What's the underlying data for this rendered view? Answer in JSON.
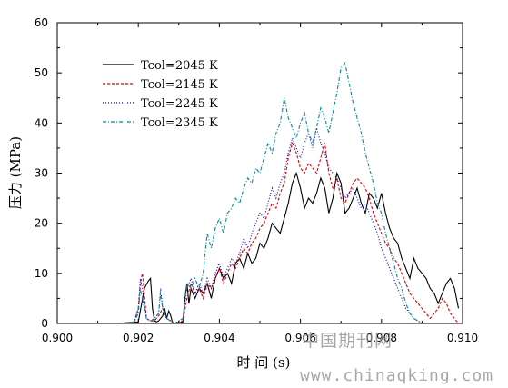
{
  "chart_data": {
    "type": "line",
    "title": "",
    "xlabel": "时 间 (s)",
    "ylabel": "压力 (MPa)",
    "xlim": [
      0.9,
      0.91
    ],
    "ylim": [
      0,
      60
    ],
    "xticks": [
      "0.900",
      "0.902",
      "0.904",
      "0.906",
      "0.908",
      "0.910"
    ],
    "yticks": [
      "0",
      "10",
      "20",
      "30",
      "40",
      "50",
      "60"
    ],
    "grid": false,
    "legend_position": "top-left",
    "series": [
      {
        "name": "Tcol=2045 K",
        "color": "#000000",
        "dash": "solid",
        "x": [
          0.9,
          0.9015,
          0.902,
          0.90215,
          0.90225,
          0.9023,
          0.90235,
          0.9024,
          0.90245,
          0.9025,
          0.9026,
          0.90265,
          0.9027,
          0.90275,
          0.9028,
          0.90285,
          0.9029,
          0.9031,
          0.90315,
          0.9032,
          0.90325,
          0.9033,
          0.9034,
          0.9035,
          0.9036,
          0.9037,
          0.9038,
          0.9039,
          0.904,
          0.9041,
          0.9042,
          0.9043,
          0.9044,
          0.9045,
          0.9046,
          0.9047,
          0.9048,
          0.9049,
          0.905,
          0.9051,
          0.9052,
          0.9053,
          0.9054,
          0.9055,
          0.9056,
          0.9057,
          0.9058,
          0.9059,
          0.906,
          0.9061,
          0.9062,
          0.9063,
          0.9064,
          0.9065,
          0.9066,
          0.9067,
          0.9068,
          0.9069,
          0.907,
          0.9071,
          0.9072,
          0.9073,
          0.9074,
          0.9075,
          0.9076,
          0.9077,
          0.9078,
          0.9079,
          0.908,
          0.9081,
          0.9082,
          0.9083,
          0.9084,
          0.9085,
          0.9086,
          0.9087,
          0.9088,
          0.9089,
          0.909,
          0.9091,
          0.9092,
          0.9093,
          0.9094,
          0.9095,
          0.9096,
          0.9097,
          0.9098,
          0.9099
        ],
        "y": [
          0,
          0,
          0.3,
          7,
          8.5,
          9,
          3,
          0.5,
          0.3,
          0.5,
          1.5,
          3,
          1,
          2.5,
          1.5,
          0,
          0,
          0.3,
          5,
          8,
          4,
          7,
          5,
          7,
          6,
          8,
          5,
          9,
          11,
          9,
          10,
          8,
          12,
          13,
          11,
          14,
          12,
          13,
          16,
          15,
          17,
          20,
          19,
          18,
          21,
          24,
          28,
          30,
          27,
          23,
          25,
          24,
          26,
          29,
          27,
          22,
          25,
          30,
          28,
          22,
          23,
          25,
          27,
          24,
          22,
          26,
          25,
          23,
          26,
          22,
          19,
          17,
          16,
          13,
          11,
          9,
          13,
          11,
          10,
          9,
          7,
          6,
          4,
          6,
          8,
          9,
          7,
          3
        ]
      },
      {
        "name": "Tcol=2145 K",
        "color": "#dd0000",
        "dash": "3,2",
        "x": [
          0.9,
          0.9015,
          0.9019,
          0.902,
          0.90205,
          0.9021,
          0.90215,
          0.9022,
          0.9023,
          0.9024,
          0.9025,
          0.9026,
          0.9027,
          0.9028,
          0.9029,
          0.9031,
          0.9032,
          0.9033,
          0.9034,
          0.9035,
          0.9036,
          0.9037,
          0.9038,
          0.9039,
          0.904,
          0.9041,
          0.9042,
          0.9043,
          0.9044,
          0.9045,
          0.9046,
          0.9047,
          0.9048,
          0.9049,
          0.905,
          0.9051,
          0.9052,
          0.9053,
          0.9054,
          0.9055,
          0.9056,
          0.9057,
          0.9058,
          0.9059,
          0.906,
          0.9061,
          0.9062,
          0.9063,
          0.9064,
          0.9065,
          0.9066,
          0.9067,
          0.9068,
          0.9069,
          0.907,
          0.9071,
          0.9072,
          0.9073,
          0.9074,
          0.9075,
          0.9076,
          0.9077,
          0.9078,
          0.9079,
          0.908,
          0.9081,
          0.9082,
          0.9083,
          0.9084,
          0.9085,
          0.9086,
          0.9087,
          0.9088,
          0.9089,
          0.909,
          0.9091,
          0.9092,
          0.9093,
          0.9094,
          0.9095,
          0.9096,
          0.9097,
          0.9098,
          0.9099
        ],
        "y": [
          0,
          0,
          0.3,
          3,
          8,
          10,
          6,
          1,
          0.5,
          0.5,
          1.5,
          3,
          1,
          0.5,
          0,
          0.5,
          5,
          8,
          6,
          7,
          5,
          8,
          7,
          9,
          11,
          8,
          10,
          12,
          11,
          13,
          15,
          14,
          16,
          17,
          19,
          20,
          22,
          24,
          23,
          26,
          28,
          33,
          36,
          34,
          31,
          30,
          32,
          31,
          30,
          33,
          36,
          30,
          27,
          29,
          25,
          24,
          26,
          28,
          29,
          28,
          27,
          25,
          22,
          20,
          18,
          16,
          15,
          13,
          12,
          10,
          8,
          6,
          5,
          4,
          3,
          2,
          1,
          2,
          3,
          5,
          4,
          2,
          1,
          0
        ]
      },
      {
        "name": "Tcol=2245 K",
        "color": "#0000cc",
        "dash": "1,2",
        "x": [
          0.9,
          0.9015,
          0.9019,
          0.902,
          0.90205,
          0.9021,
          0.90215,
          0.9022,
          0.9023,
          0.9024,
          0.9025,
          0.90255,
          0.9026,
          0.9027,
          0.9028,
          0.9029,
          0.9031,
          0.9032,
          0.9033,
          0.9034,
          0.9035,
          0.9036,
          0.9037,
          0.9038,
          0.9039,
          0.904,
          0.9041,
          0.9042,
          0.9043,
          0.9044,
          0.9045,
          0.9046,
          0.9047,
          0.9048,
          0.9049,
          0.905,
          0.9051,
          0.9052,
          0.9053,
          0.9054,
          0.9055,
          0.9056,
          0.9057,
          0.9058,
          0.9059,
          0.906,
          0.9061,
          0.9062,
          0.9063,
          0.9064,
          0.9065,
          0.9066,
          0.9067,
          0.9068,
          0.9069,
          0.907,
          0.9071,
          0.9072,
          0.9073,
          0.9074,
          0.9075,
          0.9076,
          0.9077,
          0.9078,
          0.9079,
          0.908,
          0.9081,
          0.9082,
          0.9083,
          0.9084,
          0.9085,
          0.9086,
          0.9087,
          0.9088,
          0.9089,
          0.909,
          0.9092,
          0.9095,
          0.9099
        ],
        "y": [
          0,
          0,
          0.3,
          3,
          9,
          7,
          4,
          1,
          0.5,
          1,
          2,
          7,
          3,
          1,
          0.5,
          0,
          1,
          7,
          9,
          6,
          8,
          6,
          9,
          7,
          10,
          12,
          9,
          11,
          13,
          12,
          14,
          17,
          15,
          18,
          20,
          22,
          21,
          24,
          27,
          25,
          28,
          30,
          34,
          37,
          35,
          33,
          36,
          38,
          35,
          39,
          36,
          34,
          31,
          30,
          29,
          27,
          25,
          26,
          27,
          25,
          23,
          24,
          22,
          20,
          18,
          15,
          13,
          11,
          9,
          7,
          5,
          3,
          2,
          1,
          0.5,
          0,
          0,
          0,
          0
        ]
      },
      {
        "name": "Tcol=2345 K",
        "color": "#008b9b",
        "dash": "4,2,1,2",
        "x": [
          0.9,
          0.9015,
          0.9019,
          0.902,
          0.90205,
          0.9021,
          0.9022,
          0.9023,
          0.9024,
          0.9025,
          0.90255,
          0.9026,
          0.9027,
          0.9028,
          0.9029,
          0.9031,
          0.9032,
          0.9033,
          0.9034,
          0.9035,
          0.9036,
          0.9037,
          0.9038,
          0.9039,
          0.904,
          0.9041,
          0.9042,
          0.9043,
          0.9044,
          0.9045,
          0.9046,
          0.9047,
          0.9048,
          0.9049,
          0.905,
          0.9051,
          0.9052,
          0.9053,
          0.9054,
          0.9055,
          0.9056,
          0.9057,
          0.9058,
          0.9059,
          0.906,
          0.9061,
          0.9062,
          0.9063,
          0.9064,
          0.9065,
          0.9066,
          0.9067,
          0.9068,
          0.9069,
          0.907,
          0.9071,
          0.9072,
          0.9073,
          0.9074,
          0.9075,
          0.9076,
          0.9077,
          0.9078,
          0.9079,
          0.908,
          0.9081,
          0.9082,
          0.9083,
          0.9084,
          0.9085,
          0.9086,
          0.9087,
          0.9088,
          0.9089,
          0.909,
          0.9092,
          0.9095,
          0.9099
        ],
        "y": [
          0,
          0,
          0.3,
          2,
          7,
          5,
          1,
          0.5,
          1,
          2,
          6,
          3,
          1,
          0.5,
          0,
          1,
          8,
          7,
          9,
          7,
          10,
          18,
          15,
          19,
          21,
          18,
          22,
          23,
          25,
          24,
          27,
          29,
          28,
          31,
          30,
          33,
          36,
          34,
          38,
          40,
          45,
          41,
          39,
          37,
          40,
          42,
          38,
          36,
          39,
          43,
          41,
          38,
          42,
          46,
          51,
          52,
          48,
          44,
          41,
          38,
          34,
          31,
          28,
          24,
          22,
          18,
          15,
          12,
          9,
          7,
          4,
          2,
          1,
          0.5,
          0,
          0,
          0,
          0
        ]
      }
    ]
  },
  "watermarks": {
    "line1": "中国期刊网",
    "line2": "www.chinaqking.com"
  }
}
